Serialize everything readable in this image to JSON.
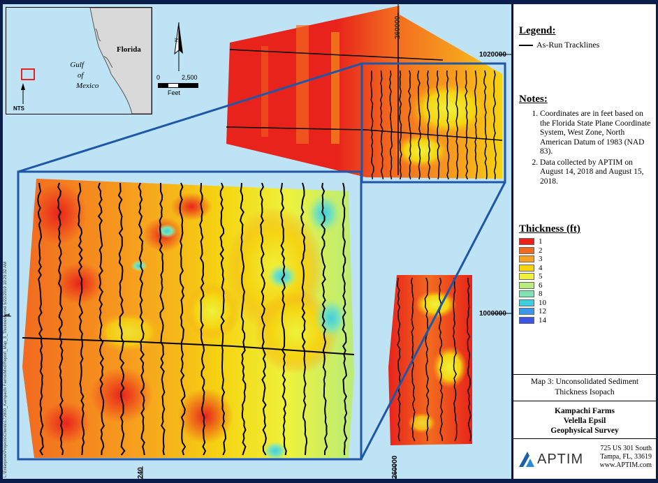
{
  "inset": {
    "labels": {
      "state": "Florida",
      "gulf_line1": "Gulf",
      "gulf_line2": "of",
      "gulf_line3": "Mexico",
      "nts": "NTS"
    }
  },
  "scalebar": {
    "zero": "0",
    "end": "2,500",
    "unit": "Feet",
    "north": "N"
  },
  "coords": {
    "northing_top": "1020000",
    "northing_mid": "1000000",
    "easting_left": "240",
    "easting_right": "260000",
    "easting_top": "260000",
    "left_tick": "1"
  },
  "side_note": "L:\\Enterprise\\Projects\\Clients\\172800_Kampachi Farms\\Mxd\\Report_Map_3_Thickness.mxd  5/22/2019  10:29:32 AM",
  "legend": {
    "title": "Legend:",
    "items": [
      {
        "label": "As-Run Tracklines",
        "color": "#000000"
      }
    ]
  },
  "notes": {
    "title": "Notes:",
    "items": [
      "Coordinates are in feet based on the Florida State Plane Coordinate System, West Zone, North American Datum of 1983 (NAD 83).",
      "Data collected by APTIM on August 14, 2018 and August 15, 2018."
    ]
  },
  "thickness": {
    "title": "Thickness (ft)",
    "classes": [
      {
        "label": "1",
        "color": "#e8231b"
      },
      {
        "label": "2",
        "color": "#f26a1f"
      },
      {
        "label": "3",
        "color": "#f7a11e"
      },
      {
        "label": "4",
        "color": "#f5d411"
      },
      {
        "label": "5",
        "color": "#eef23c"
      },
      {
        "label": "6",
        "color": "#b9ec7a"
      },
      {
        "label": "8",
        "color": "#7ee3b3"
      },
      {
        "label": "10",
        "color": "#3fcde0"
      },
      {
        "label": "12",
        "color": "#3c97ec"
      },
      {
        "label": "14",
        "color": "#3c55e6"
      }
    ]
  },
  "map_title": {
    "line1": "Map 3: Unconsolidated Sediment",
    "line2": "Thickness Isopach"
  },
  "project": {
    "line1": "Kampachi Farms",
    "line2": "Velella Epsil",
    "line3": "Geophysical Survey"
  },
  "company": {
    "name": "APTIM",
    "addr1": "725 US 301 South",
    "addr2": "Tampa, FL, 33619",
    "addr3": "www.APTIM.com"
  }
}
